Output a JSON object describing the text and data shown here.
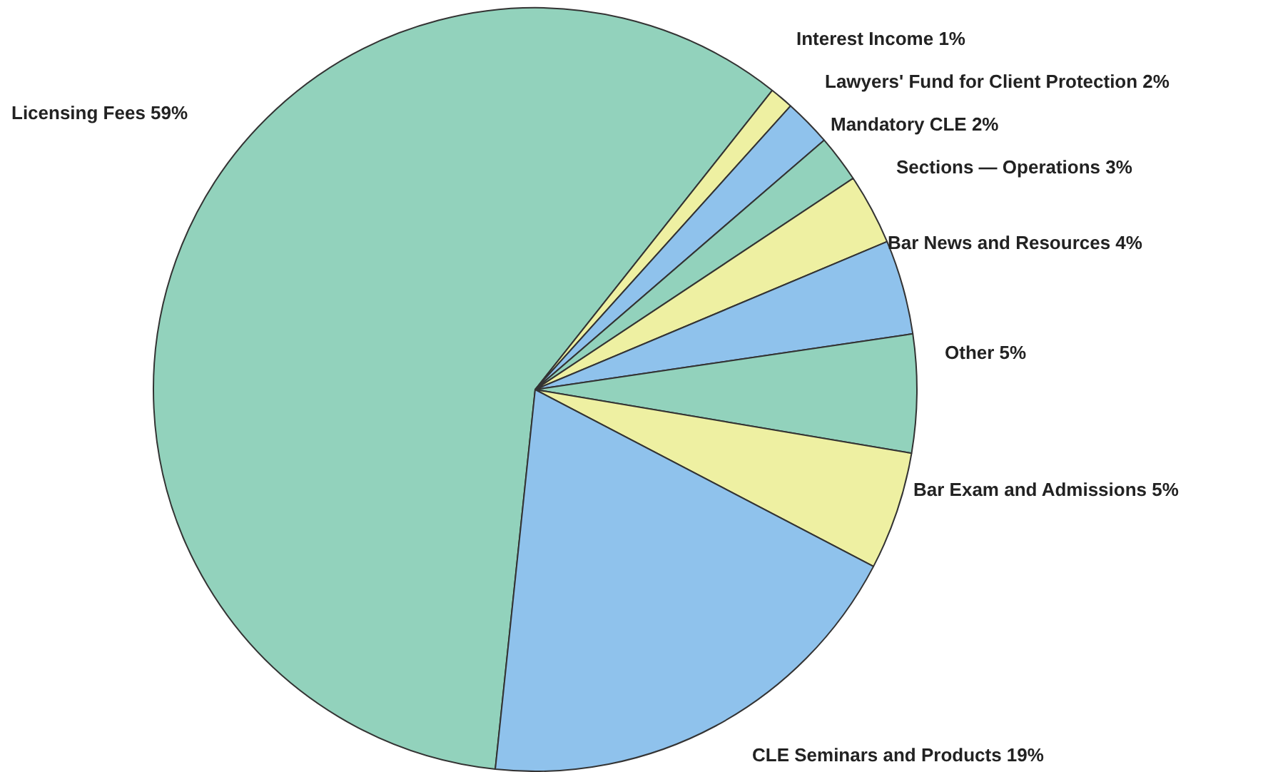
{
  "chart_data": {
    "type": "pie",
    "categories": [
      "Licensing Fees",
      "Interest Income",
      "Lawyers' Fund for Client Protection",
      "Mandatory CLE",
      "Sections — Operations",
      "Bar News and Resources",
      "Other",
      "Bar Exam and Admissions",
      "CLE Seminars and Products"
    ],
    "values": [
      59,
      1,
      2,
      2,
      3,
      4,
      5,
      5,
      19
    ],
    "colors": [
      "#92d2bc",
      "#eef0a2",
      "#8fc2ec",
      "#92d2bc",
      "#eef0a2",
      "#8fc2ec",
      "#92d2bc",
      "#eef0a2",
      "#8fc2ec"
    ],
    "value_labels": [
      "59%",
      "1%",
      "2%",
      "2%",
      "3%",
      "4%",
      "5%",
      "5%",
      "19%"
    ],
    "legend": false
  }
}
